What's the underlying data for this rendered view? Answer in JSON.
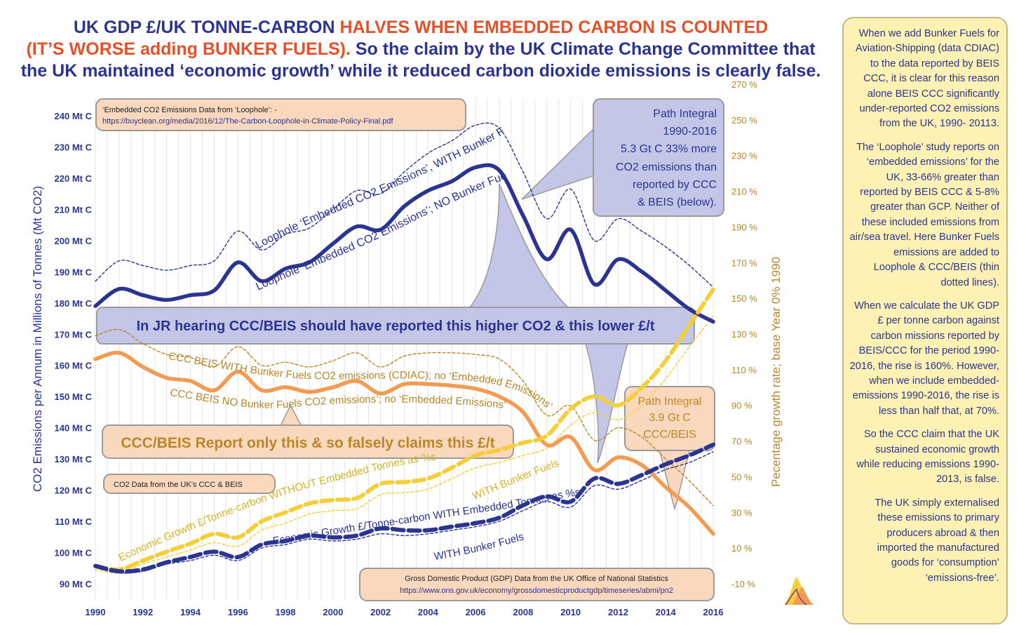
{
  "title": {
    "part1": "UK GDP £/UK TONNE-CARBON ",
    "part2": "HALVES WHEN EMBEDDED CARBON IS COUNTED",
    "part3": "(IT’S WORSE adding BUNKER FUELS).",
    "part4": " So the claim by the UK Climate Change Committee that",
    "line3": "the UK maintained ‘economic growth’ while it reduced carbon dioxide emissions is clearly false."
  },
  "sidebar": {
    "paragraphs": [
      "When we add Bunker Fuels for Aviation-Shipping (data CDIAC) to the data reported by BEIS CCC, it is clear for this reason alone BEIS CCC significantly under-reported CO2 emissions from the UK, 1990- 20113.",
      "The ‘Loophole’ study reports on ‘embedded emissions’ for the UK, 33-66% greater than reported by BEIS CCC & 5-8% greater than GCP. Neither of these included emissions from air/sea travel. Here Bunker Fuels emissions are added to Loophole & CCC/BEIS (thin dotted lines).",
      "When we calculate the UK GDP £ per tonne carbon against carbon missions reported by BEIS/CCC for the period 1990-2016, the rise is 160%. However, when we include embedded-emissions 1990-2016, the rise is less than half that, at 70%.",
      "So the CCC claim that the UK sustained economic growth while reducing emissions 1990-2013, is false.",
      "The UK simply externalised these emissions to primary producers abroad & then imported the manufactured goods for ‘consumption’ ‘emissions-free’."
    ]
  },
  "annotations": {
    "loophole_source_1": "‘Embedded CO2 Emissions Data from ‘Loophole’: -",
    "loophole_source_2": "https://buyclean.org/media/2016/12/The-Carbon-Loophole-in-Climate-Policy-Final.pdf",
    "path_integral_loophole": [
      "Path Integral",
      "1990-2016",
      "5.3 Gt C 33% more",
      "CO2 emissions than",
      "reported by  CCC",
      "& BEIS (below)."
    ],
    "jr_hearing": "In JR hearing CCC/BEIS should have reported this higher CO2 & this lower £/t",
    "path_integral_ccc": [
      "Path Integral",
      "3.9 Gt C",
      "CCC/BEIS"
    ],
    "ccc_claim": "CCC/BEIS Report only this & so falsely claims this £/t",
    "ccc_source": "CO2 Data from the UK’s CCC & BEIS",
    "gdp_source_1": "Gross Domestic Product (GDP) Data from the UK Office of National Statistics",
    "gdp_source_2": "https://www.ons.gov.uk/economy/grossdomesticproductgdp/timeseries/abmi/pn2"
  },
  "curve_labels": {
    "loophole_with": "Loophole ‘Embedded CO2 Emissions’, WITH Bunker Fuels",
    "loophole_no": "Loophole ‘Embedded CO2 Emissions’; NO Bunker Fuels",
    "ccc_with": "CCC BEIS WITH Bunker Fuels CO2 emissions (CDIAC); no ‘Embedded Emissions’",
    "ccc_no": "CCC BEIS NO Bunker Fuels CO2 emissions’; no ‘Embedded Emissions’",
    "econ_without": "Economic Growth £/Tonne-carbon WITHOUT Embedded Tonnes as %s",
    "with_bunker_1": "WITH Bunker Fuels",
    "econ_with": "Economic Growth £/Tonne-carbon WITH Embedded Tonnes as %s",
    "with_bunker_2": "WITH Bunker Fuels"
  },
  "colors": {
    "navy": "#2b3490",
    "orange": "#f39a53",
    "yellow": "#f5cf3a",
    "olive": "#b9862a",
    "lavender": "#c3c6e6",
    "peach": "#fad8bd",
    "note_bg": "#fdf2b4"
  },
  "chart_data": {
    "type": "line",
    "x_ticks": [
      "1990",
      "1992",
      "1994",
      "1996",
      "1998",
      "2000",
      "2002",
      "2004",
      "2006",
      "2008",
      "2010",
      "2012",
      "2014",
      "2016"
    ],
    "xlim": [
      1990,
      2016
    ],
    "ylabel": "CO2 Emissions per Annum in Millions of Tonnes (Mt CO2)",
    "ylim": [
      90,
      240
    ],
    "y_ticks": [
      "90 Mt C",
      "100 Mt C",
      "110 Mt C",
      "120 Mt C",
      "130 Mt C",
      "140 Mt C",
      "150 Mt C",
      "160 Mt C",
      "170 Mt C",
      "180 Mt C",
      "190 Mt C",
      "200 Mt C",
      "210 Mt C",
      "220 Mt C",
      "230 Mt C",
      "240 Mt C"
    ],
    "y2label": "Pecentage growth rate; base Year 0% 1990",
    "y2lim": [
      -10,
      270
    ],
    "y2_ticks": [
      "-10 %",
      "10 %",
      "30 %",
      "50 %",
      "70 %",
      "90 %",
      "110 %",
      "130 %",
      "150 %",
      "170 %",
      "190 %",
      "210 %",
      "230 %",
      "250 %",
      "270 %"
    ],
    "series": [
      {
        "axis": "left",
        "style": "thick-solid",
        "color": "#2b3490",
        "x": [
          1990,
          1991,
          1992,
          1993,
          1994,
          1995,
          1996,
          1997,
          1998,
          1999,
          2000,
          2001,
          2002,
          2003,
          2004,
          2005,
          2006,
          2007,
          2008,
          2009,
          2010,
          2011,
          2012,
          2013,
          2014,
          2015,
          2016
        ],
        "y": [
          179,
          184.5,
          182.5,
          181,
          182.5,
          184,
          193,
          187,
          191,
          193,
          199,
          204.5,
          203.5,
          211,
          216,
          219,
          223.5,
          222.5,
          208,
          194,
          203.5,
          186,
          194,
          190,
          184,
          178,
          174
        ]
      },
      {
        "axis": "left",
        "style": "thin-dashed",
        "color": "#2b3490",
        "x": [
          1990,
          1991,
          1992,
          1993,
          1994,
          1995,
          1996,
          1997,
          1998,
          1999,
          2000,
          2001,
          2002,
          2003,
          2004,
          2005,
          2006,
          2007,
          2008,
          2009,
          2010,
          2011,
          2012,
          2013,
          2014,
          2015,
          2016
        ],
        "y": [
          187,
          193.5,
          192,
          190.5,
          192,
          193.5,
          203,
          197,
          202,
          204,
          210,
          216,
          215,
          222,
          228,
          232,
          237,
          236,
          222,
          207,
          216.5,
          200,
          207,
          203,
          198,
          192,
          185
        ]
      },
      {
        "axis": "left",
        "style": "thick-solid",
        "color": "#f39a53",
        "x": [
          1990,
          1991,
          1992,
          1993,
          1994,
          1995,
          1996,
          1997,
          1998,
          1999,
          2000,
          2001,
          2002,
          2003,
          2004,
          2005,
          2006,
          2007,
          2008,
          2009,
          2010,
          2011,
          2012,
          2013,
          2014,
          2015,
          2016
        ],
        "y": [
          162,
          164,
          159.5,
          156,
          155,
          152,
          158,
          152,
          153,
          151.5,
          153,
          155,
          151,
          154,
          154,
          153.5,
          152.5,
          150,
          145,
          134.5,
          137,
          126.5,
          130.5,
          128,
          121,
          114.5,
          106
        ]
      },
      {
        "axis": "left",
        "style": "thin-dashed",
        "color": "#b9862a",
        "x": [
          1990,
          1991,
          1992,
          1993,
          1994,
          1995,
          1996,
          1997,
          1998,
          1999,
          2000,
          2001,
          2002,
          2003,
          2004,
          2005,
          2006,
          2007,
          2008,
          2009,
          2010,
          2011,
          2012,
          2013,
          2014,
          2015,
          2016
        ],
        "y": [
          169.5,
          171.5,
          167,
          163.5,
          162.5,
          159.5,
          166,
          160,
          161,
          159.5,
          161.5,
          164,
          159.5,
          163,
          164,
          164,
          163.5,
          162,
          155,
          144,
          147,
          136,
          140,
          137,
          130,
          123,
          115
        ]
      },
      {
        "axis": "right",
        "style": "thick-dashed",
        "color": "#f5cf3a",
        "x": [
          1990,
          1991,
          1992,
          1993,
          1994,
          1995,
          1996,
          1997,
          1998,
          1999,
          2000,
          2001,
          2002,
          2003,
          2004,
          2005,
          2006,
          2007,
          2008,
          2009,
          2010,
          2011,
          2012,
          2013,
          2014,
          2015,
          2016
        ],
        "y": [
          0,
          -2,
          3,
          8,
          12.5,
          18,
          16,
          25,
          30,
          35,
          37,
          38,
          46,
          47,
          49,
          55,
          62,
          65,
          69,
          73,
          88,
          95,
          90,
          100,
          115,
          135,
          155
        ]
      },
      {
        "axis": "right",
        "style": "thin-dashed",
        "color": "#f5cf3a",
        "x": [
          1990,
          1991,
          1992,
          1993,
          1994,
          1995,
          1996,
          1997,
          1998,
          1999,
          2000,
          2001,
          2002,
          2003,
          2004,
          2005,
          2006,
          2007,
          2008,
          2009,
          2010,
          2011,
          2012,
          2013,
          2014,
          2015,
          2016
        ],
        "y": [
          -2,
          -4,
          1,
          5,
          9,
          13,
          11,
          20,
          24,
          29,
          31,
          32,
          40,
          41,
          43,
          49,
          55,
          58,
          62,
          66,
          79,
          86,
          82,
          90,
          105,
          123,
          140
        ]
      },
      {
        "axis": "right",
        "style": "thick-dashed",
        "color": "#2b3490",
        "x": [
          1990,
          1991,
          1992,
          1993,
          1994,
          1995,
          1996,
          1997,
          1998,
          1999,
          2000,
          2001,
          2002,
          2003,
          2004,
          2005,
          2006,
          2007,
          2008,
          2009,
          2010,
          2011,
          2012,
          2013,
          2014,
          2015,
          2016
        ],
        "y": [
          0,
          -3,
          -2,
          2,
          5,
          8,
          5,
          12,
          14,
          17,
          16,
          17,
          21,
          20,
          20,
          22,
          24,
          27,
          34,
          39,
          36,
          49,
          46,
          51,
          57,
          62,
          68
        ]
      },
      {
        "axis": "right",
        "style": "thin-dashed",
        "color": "#2b3490",
        "x": [
          1990,
          1991,
          1992,
          1993,
          1994,
          1995,
          1996,
          1997,
          1998,
          1999,
          2000,
          2001,
          2002,
          2003,
          2004,
          2005,
          2006,
          2007,
          2008,
          2009,
          2010,
          2011,
          2012,
          2013,
          2014,
          2015,
          2016
        ],
        "y": [
          -1,
          -4,
          -3,
          1,
          3,
          6,
          3,
          10,
          12,
          15,
          14,
          15,
          18,
          17,
          18,
          20,
          22,
          25,
          31,
          36,
          33,
          45,
          43,
          48,
          54,
          58,
          64
        ]
      }
    ]
  }
}
